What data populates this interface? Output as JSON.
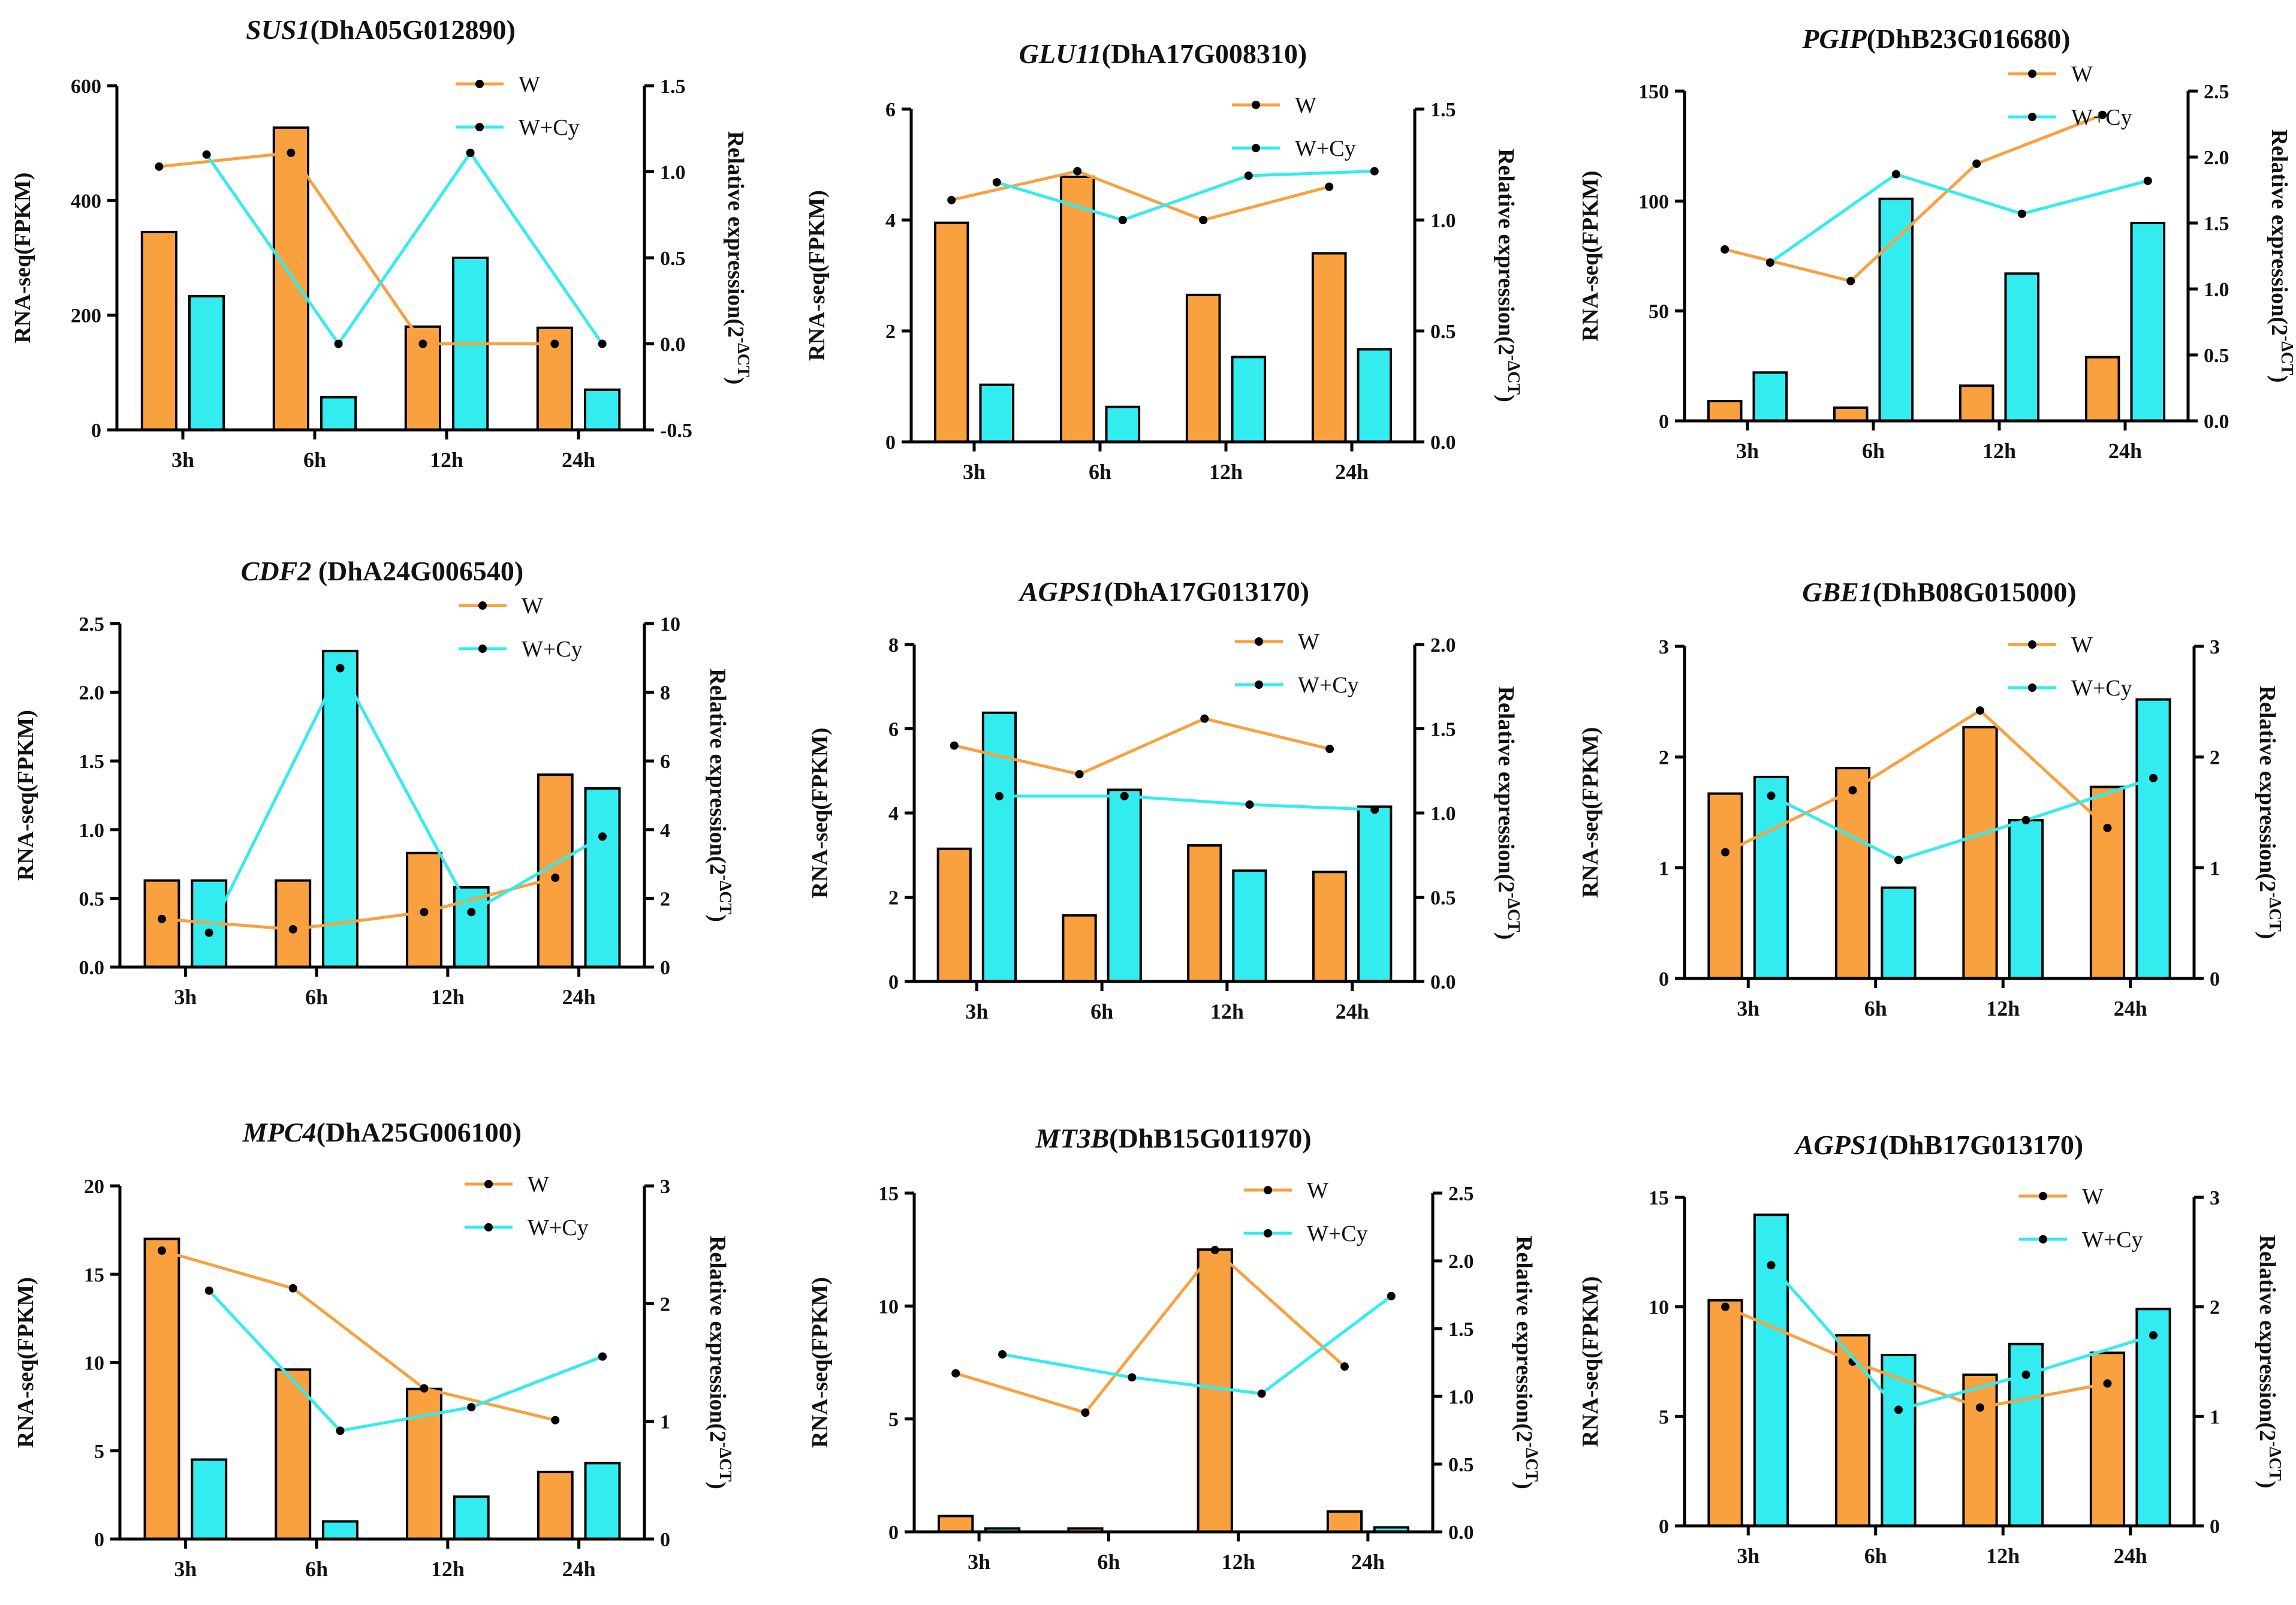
{
  "colors": {
    "W": "#f9a03f",
    "W+Cy": "#33ecef",
    "axis": "#000000"
  },
  "chart_data": [
    {
      "type": "bar+line",
      "title_gene": "SUS1",
      "title_id": "(DhA05G012890)",
      "categories": [
        "3h",
        "6h",
        "12h",
        "24h"
      ],
      "ylabel_left": "RNA-seq(FPKM)",
      "ylabel_right": "Relative expression(2",
      "ylabel_right_sup": "-ΔCT",
      "ylabel_right_close": ")",
      "left_ylim": [
        0,
        600
      ],
      "left_ticks": [
        "0",
        "200",
        "400",
        "600"
      ],
      "right_ylim": [
        -0.5,
        1.5
      ],
      "right_ticks": [
        "-0.5",
        "0.0",
        "0.5",
        "1.0",
        "1.5"
      ],
      "legend": [
        "W",
        "W+Cy"
      ],
      "bars": {
        "W": [
          345,
          527,
          180,
          178
        ],
        "W+Cy": [
          233,
          57,
          300,
          70
        ]
      },
      "lines": {
        "W": [
          1.03,
          1.11,
          0.0,
          0.0
        ],
        "W+Cy": [
          1.1,
          0.0,
          1.11,
          0.0
        ]
      }
    },
    {
      "type": "bar+line",
      "title_gene": "GLU11",
      "title_id": "(DhA17G008310)",
      "categories": [
        "3h",
        "6h",
        "12h",
        "24h"
      ],
      "ylabel_left": "RNA-seq(FPKM)",
      "ylabel_right": "Relative expression(2",
      "ylabel_right_sup": "-ΔCT",
      "ylabel_right_close": ")",
      "left_ylim": [
        0,
        6
      ],
      "left_ticks": [
        "0",
        "2",
        "4",
        "6"
      ],
      "right_ylim": [
        0,
        1.5
      ],
      "right_ticks": [
        "0.0",
        "0.5",
        "1.0",
        "1.5"
      ],
      "legend": [
        "W",
        "W+Cy"
      ],
      "bars": {
        "W": [
          3.95,
          4.78,
          2.65,
          3.4
        ],
        "W+Cy": [
          1.03,
          0.63,
          1.53,
          1.67
        ]
      },
      "lines": {
        "W": [
          1.09,
          1.22,
          1.0,
          1.15
        ],
        "W+Cy": [
          1.17,
          1.0,
          1.2,
          1.22
        ]
      }
    },
    {
      "type": "bar+line",
      "title_gene": "PGIP",
      "title_id": "(DhB23G016680)",
      "categories": [
        "3h",
        "6h",
        "12h",
        "24h"
      ],
      "ylabel_left": "RNA-seq(FPKM)",
      "ylabel_right": "Relative expression(2",
      "ylabel_right_sup": "-ΔCT",
      "ylabel_right_close": ")",
      "left_ylim": [
        0,
        150
      ],
      "left_ticks": [
        "0",
        "50",
        "100",
        "150"
      ],
      "right_ylim": [
        0,
        2.5
      ],
      "right_ticks": [
        "0.0",
        "0.5",
        "1.0",
        "1.5",
        "2.0",
        "2.5"
      ],
      "legend": [
        "W",
        "W+Cy"
      ],
      "bars": {
        "W": [
          9,
          6,
          16,
          29
        ],
        "W+Cy": [
          22,
          101,
          67,
          90
        ]
      },
      "lines": {
        "W": [
          1.3,
          1.06,
          1.95,
          2.32
        ],
        "W+Cy": [
          1.2,
          1.87,
          1.57,
          1.82
        ]
      }
    },
    {
      "type": "bar+line",
      "title_gene": "CDF2",
      "title_id": " (DhA24G006540)",
      "categories": [
        "3h",
        "6h",
        "12h",
        "24h"
      ],
      "ylabel_left": "RNA-seq(FPKM)",
      "ylabel_right": "Relative expression(2",
      "ylabel_right_sup": "-ΔCT",
      "ylabel_right_close": ")",
      "left_ylim": [
        0,
        2.5
      ],
      "left_ticks": [
        "0.0",
        "0.5",
        "1.0",
        "1.5",
        "2.0",
        "2.5"
      ],
      "right_ylim": [
        0,
        10
      ],
      "right_ticks": [
        "0",
        "2",
        "4",
        "6",
        "8",
        "10"
      ],
      "legend": [
        "W",
        "W+Cy"
      ],
      "bars": {
        "W": [
          0.63,
          0.63,
          0.83,
          1.4
        ],
        "W+Cy": [
          0.63,
          2.3,
          0.58,
          1.3
        ]
      },
      "lines": {
        "W": [
          1.4,
          1.1,
          1.6,
          2.6
        ],
        "W+Cy": [
          1.0,
          8.7,
          1.6,
          3.8
        ]
      }
    },
    {
      "type": "bar+line",
      "title_gene": "AGPS1",
      "title_id": "(DhA17G013170)",
      "categories": [
        "3h",
        "6h",
        "12h",
        "24h"
      ],
      "ylabel_left": "RNA-seq(FPKM)",
      "ylabel_right": "Relative expression(2",
      "ylabel_right_sup": "-ΔCT",
      "ylabel_right_close": ")",
      "left_ylim": [
        0,
        8
      ],
      "left_ticks": [
        "0",
        "2",
        "4",
        "6",
        "8"
      ],
      "right_ylim": [
        0,
        2.0
      ],
      "right_ticks": [
        "0.0",
        "0.5",
        "1.0",
        "1.5",
        "2.0"
      ],
      "legend": [
        "W",
        "W+Cy"
      ],
      "bars": {
        "W": [
          3.15,
          1.57,
          3.23,
          2.6
        ],
        "W+Cy": [
          6.38,
          4.55,
          2.63,
          4.15
        ]
      },
      "lines": {
        "W": [
          1.4,
          1.23,
          1.56,
          1.38
        ],
        "W+Cy": [
          1.1,
          1.1,
          1.05,
          1.02
        ]
      }
    },
    {
      "type": "bar+line",
      "title_gene": "GBE1",
      "title_id": "(DhB08G015000)",
      "categories": [
        "3h",
        "6h",
        "12h",
        "24h"
      ],
      "ylabel_left": "RNA-seq(FPKM)",
      "ylabel_right": "Relative expression(2",
      "ylabel_right_sup": "-ΔCT",
      "ylabel_right_close": ")",
      "left_ylim": [
        0,
        3
      ],
      "left_ticks": [
        "0",
        "1",
        "2",
        "3"
      ],
      "right_ylim": [
        0,
        3
      ],
      "right_ticks": [
        "0",
        "1",
        "2",
        "3"
      ],
      "legend": [
        "W",
        "W+Cy"
      ],
      "bars": {
        "W": [
          1.67,
          1.9,
          2.27,
          1.73
        ],
        "W+Cy": [
          1.82,
          0.82,
          1.43,
          2.52
        ]
      },
      "lines": {
        "W": [
          1.14,
          1.7,
          2.42,
          1.36
        ],
        "W+Cy": [
          1.65,
          1.07,
          1.43,
          1.81
        ]
      }
    },
    {
      "type": "bar+line",
      "title_gene": "MPC4",
      "title_id": "(DhA25G006100)",
      "categories": [
        "3h",
        "6h",
        "12h",
        "24h"
      ],
      "ylabel_left": "RNA-seq(FPKM)",
      "ylabel_right": "Relative expression(2",
      "ylabel_right_sup": "-ΔCT",
      "ylabel_right_close": ")",
      "left_ylim": [
        0,
        20
      ],
      "left_ticks": [
        "0",
        "5",
        "10",
        "15",
        "20"
      ],
      "right_ylim": [
        0,
        3
      ],
      "right_ticks": [
        "0",
        "1",
        "2",
        "3"
      ],
      "legend": [
        "W",
        "W+Cy"
      ],
      "bars": {
        "W": [
          17.0,
          9.6,
          8.5,
          3.8
        ],
        "W+Cy": [
          4.5,
          1.0,
          2.4,
          4.3
        ]
      },
      "lines": {
        "W": [
          2.45,
          2.13,
          1.28,
          1.01
        ],
        "W+Cy": [
          2.11,
          0.92,
          1.12,
          1.55
        ]
      }
    },
    {
      "type": "bar+line",
      "title_gene": "MT3B",
      "title_id": "(DhB15G011970)",
      "categories": [
        "3h",
        "6h",
        "12h",
        "24h"
      ],
      "ylabel_left": "RNA-seq(FPKM)",
      "ylabel_right": "Relative expression(2",
      "ylabel_right_sup": "-ΔCT",
      "ylabel_right_close": ")",
      "left_ylim": [
        0,
        15
      ],
      "left_ticks": [
        "0",
        "5",
        "10",
        "15"
      ],
      "right_ylim": [
        0,
        2.5
      ],
      "right_ticks": [
        "0.0",
        "0.5",
        "1.0",
        "1.5",
        "2.0",
        "2.5"
      ],
      "legend": [
        "W",
        "W+Cy"
      ],
      "bars": {
        "W": [
          0.7,
          0.15,
          12.5,
          0.9
        ],
        "W+Cy": [
          0.15,
          0.0,
          0.0,
          0.2
        ]
      },
      "lines": {
        "W": [
          1.17,
          0.88,
          2.08,
          1.22
        ],
        "W+Cy": [
          1.31,
          1.14,
          1.02,
          1.74
        ]
      }
    },
    {
      "type": "bar+line",
      "title_gene": "AGPS1",
      "title_id": "(DhB17G013170)",
      "categories": [
        "3h",
        "6h",
        "12h",
        "24h"
      ],
      "ylabel_left": "RNA-seq(FPKM)",
      "ylabel_right": "Relative expression(2",
      "ylabel_right_sup": "-ΔCT",
      "ylabel_right_close": ")",
      "left_ylim": [
        0,
        15
      ],
      "left_ticks": [
        "0",
        "5",
        "10",
        "15"
      ],
      "right_ylim": [
        0,
        3
      ],
      "right_ticks": [
        "0",
        "1",
        "2",
        "3"
      ],
      "legend": [
        "W",
        "W+Cy"
      ],
      "bars": {
        "W": [
          10.3,
          8.7,
          6.9,
          7.9
        ],
        "W+Cy": [
          14.2,
          7.8,
          8.3,
          9.9
        ]
      },
      "lines": {
        "W": [
          2.0,
          1.5,
          1.08,
          1.3
        ],
        "W+Cy": [
          2.38,
          1.06,
          1.38,
          1.74
        ]
      }
    }
  ]
}
